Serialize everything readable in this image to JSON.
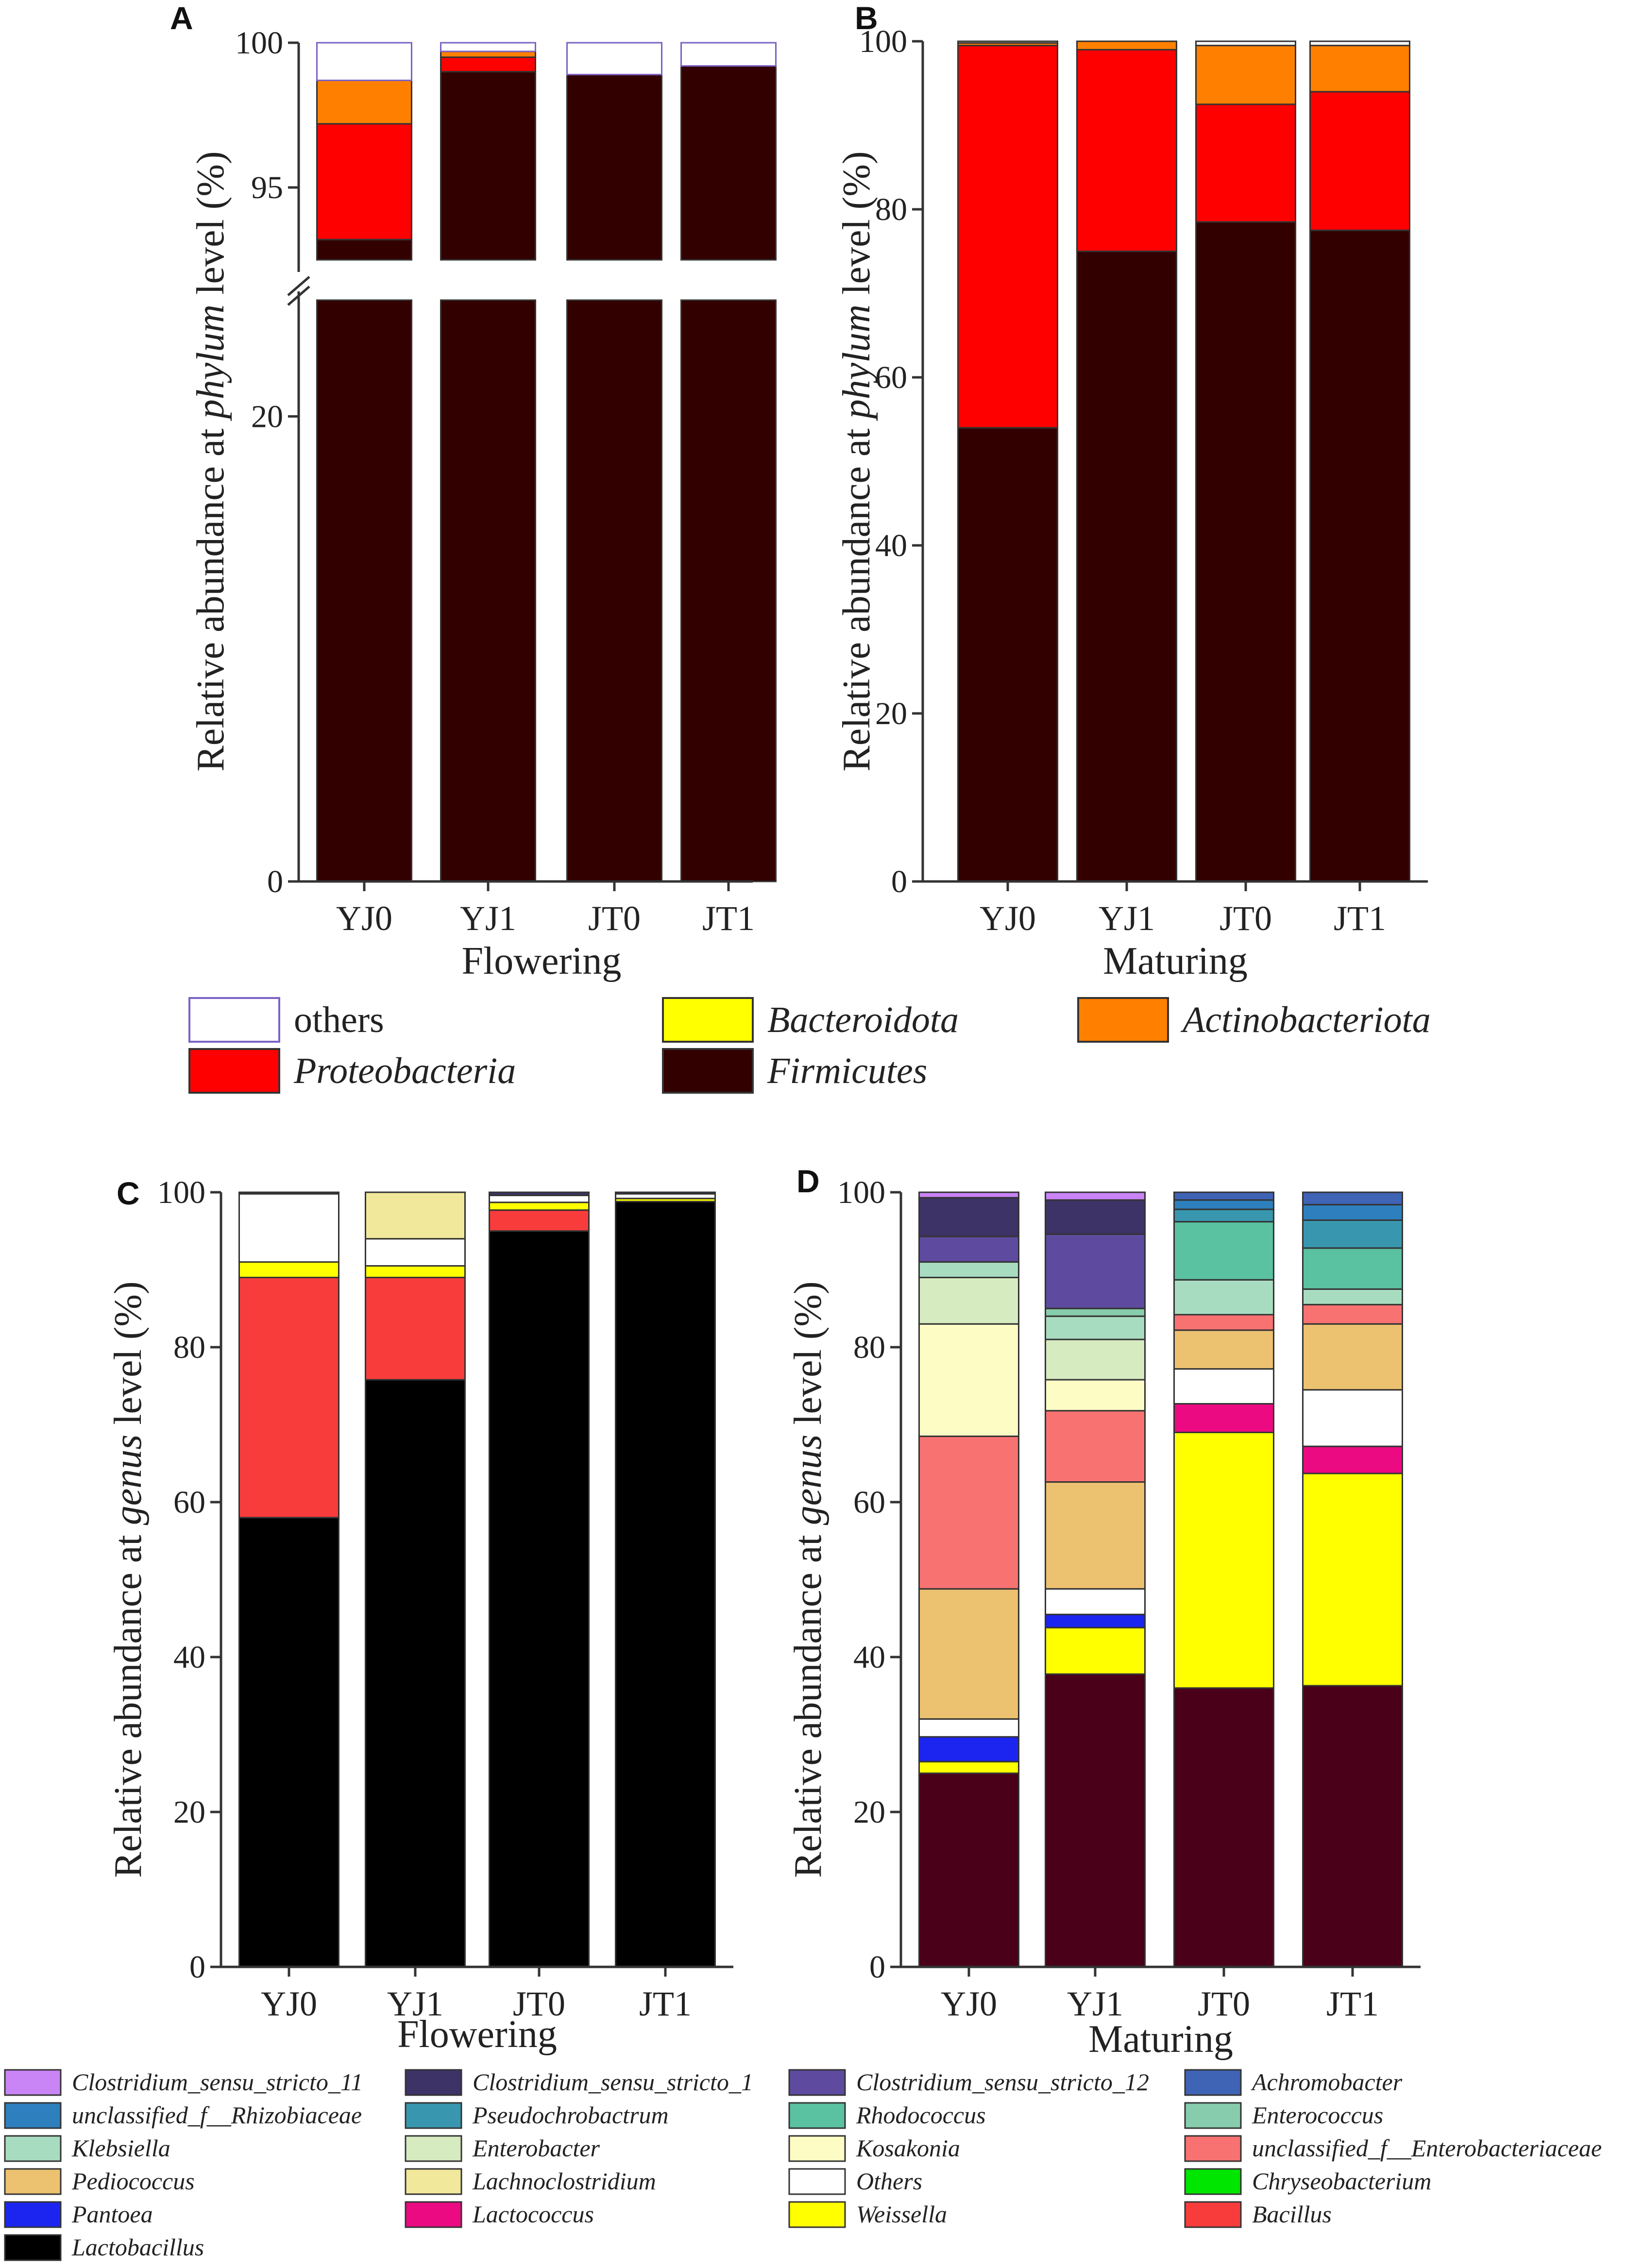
{
  "colors": {
    "others": "#ffffff",
    "others_edge_A": "#7b62c4",
    "bacteroidota": "#ffff00",
    "actinobacteriota": "#ff8000",
    "proteobacteria": "#ff0000",
    "firmicutes": "#330000",
    "axis": "#333333"
  },
  "chart_data": [
    {
      "panel": "A",
      "type": "bar",
      "stacked": true,
      "broken_axis": true,
      "title": "",
      "xlabel": "Flowering",
      "ylabel": {
        "prefix": "Relative abundance at ",
        "italic": "phylum",
        "suffix": " level (%)"
      },
      "categories": [
        "YJ0",
        "YJ1",
        "JT0",
        "JT1"
      ],
      "ylim_lower": [
        0,
        25
      ],
      "ylim_upper": [
        92.5,
        100
      ],
      "yticks_lower": [
        "0",
        "20"
      ],
      "yticks_upper": [
        "95",
        "100"
      ],
      "series": [
        {
          "name": "Firmicutes",
          "color": "#330000",
          "values": [
            93.2,
            99.0,
            98.9,
            99.2
          ]
        },
        {
          "name": "Proteobacteria",
          "color": "#ff0000",
          "values": [
            4.0,
            0.5,
            0.0,
            0.0
          ]
        },
        {
          "name": "Actinobacteriota",
          "color": "#ff8000",
          "values": [
            1.5,
            0.2,
            0.0,
            0.0
          ]
        },
        {
          "name": "Bacteroidota",
          "color": "#ffff00",
          "values": [
            0.0,
            0.0,
            0.0,
            0.0
          ]
        },
        {
          "name": "others",
          "color": "#ffffff",
          "values": [
            1.3,
            0.3,
            1.1,
            0.8
          ]
        }
      ]
    },
    {
      "panel": "B",
      "type": "bar",
      "stacked": true,
      "title": "",
      "xlabel": "Maturing",
      "ylabel": {
        "prefix": "Relative abundance at ",
        "italic": "phylum",
        "suffix": " level (%)"
      },
      "categories": [
        "YJ0",
        "YJ1",
        "JT0",
        "JT1"
      ],
      "ylim": [
        0,
        100
      ],
      "yticks": [
        "0",
        "20",
        "40",
        "60",
        "80",
        "100"
      ],
      "series": [
        {
          "name": "Firmicutes",
          "color": "#330000",
          "values": [
            54.0,
            75.0,
            78.5,
            77.5
          ]
        },
        {
          "name": "Proteobacteria",
          "color": "#ff0000",
          "values": [
            45.5,
            24.0,
            14.0,
            16.5
          ]
        },
        {
          "name": "Actinobacteriota",
          "color": "#ff8000",
          "values": [
            0.3,
            1.0,
            7.0,
            5.5
          ]
        },
        {
          "name": "Bacteroidota",
          "color": "#ffff00",
          "values": [
            0.0,
            0.0,
            0.0,
            0.0
          ]
        },
        {
          "name": "others",
          "color": "#ffffff",
          "values": [
            0.2,
            0.0,
            0.5,
            0.5
          ]
        }
      ]
    },
    {
      "panel": "C",
      "type": "bar",
      "stacked": true,
      "title": "",
      "xlabel": "Flowering",
      "ylabel": {
        "prefix": "Relative abundance at ",
        "italic": "genus",
        "suffix": " level (%)"
      },
      "categories": [
        "YJ0",
        "YJ1",
        "JT0",
        "JT1"
      ],
      "ylim": [
        0,
        100
      ],
      "yticks": [
        "0",
        "20",
        "40",
        "60",
        "80",
        "100"
      ],
      "series": [
        {
          "name": "Lactobacillus",
          "color": "#000000",
          "values": [
            58.0,
            75.8,
            95.0,
            98.8
          ]
        },
        {
          "name": "Bacillus",
          "color": "#f83c3c",
          "values": [
            31.0,
            13.2,
            2.7,
            0.0
          ]
        },
        {
          "name": "Weissella",
          "color": "#ffff00",
          "values": [
            2.0,
            1.5,
            1.0,
            0.4
          ]
        },
        {
          "name": "Others",
          "color": "#ffffff",
          "values": [
            8.8,
            3.5,
            0.9,
            0.6
          ]
        },
        {
          "name": "Lachnoclostridium",
          "color": "#f2e89b",
          "values": [
            0.0,
            6.0,
            0.0,
            0.0
          ]
        },
        {
          "name": "Clostridium_sensu_stricto_1",
          "color": "#3e3367",
          "values": [
            0.2,
            0.0,
            0.4,
            0.2
          ]
        }
      ]
    },
    {
      "panel": "D",
      "type": "bar",
      "stacked": true,
      "title": "",
      "xlabel": "Maturing",
      "ylabel": {
        "prefix": "Relative abundance at ",
        "italic": "genus",
        "suffix": " level (%)"
      },
      "categories": [
        "YJ0",
        "YJ1",
        "JT0",
        "JT1"
      ],
      "ylim": [
        0,
        100
      ],
      "yticks": [
        "0",
        "20",
        "40",
        "60",
        "80",
        "100"
      ],
      "series": [
        {
          "name": "Lactobacillus",
          "color": "#4a0019",
          "values": [
            25.0,
            37.8,
            36.0,
            36.3
          ]
        },
        {
          "name": "Weissella",
          "color": "#ffff00",
          "values": [
            1.5,
            6.0,
            33.0,
            27.4
          ]
        },
        {
          "name": "Pantoea",
          "color": "#1c25f0",
          "values": [
            3.2,
            1.7,
            0.0,
            0.0
          ]
        },
        {
          "name": "Lactococcus",
          "color": "#eb0a82",
          "values": [
            0.0,
            0.0,
            3.7,
            3.5
          ]
        },
        {
          "name": "Others",
          "color": "#ffffff",
          "values": [
            2.3,
            3.3,
            4.5,
            7.3
          ]
        },
        {
          "name": "Pediococcus",
          "color": "#ecc170",
          "values": [
            16.8,
            13.8,
            5.0,
            8.5
          ]
        },
        {
          "name": "unclassified_f__Enterobacteriaceae",
          "color": "#f87272",
          "values": [
            19.7,
            9.2,
            2.0,
            2.5
          ]
        },
        {
          "name": "Kosakonia",
          "color": "#fdfcc5",
          "values": [
            14.5,
            4.0,
            0.0,
            0.0
          ]
        },
        {
          "name": "Enterobacter",
          "color": "#d6ebc0",
          "values": [
            6.0,
            5.2,
            0.0,
            0.0
          ]
        },
        {
          "name": "Klebsiella",
          "color": "#a8dcc0",
          "values": [
            2.0,
            3.0,
            4.5,
            2.0
          ]
        },
        {
          "name": "Enterococcus",
          "color": "#87ccac",
          "values": [
            0.0,
            1.0,
            0.0,
            0.0
          ]
        },
        {
          "name": "Rhodococcus",
          "color": "#5ac1a1",
          "values": [
            0.0,
            0.0,
            7.5,
            5.3
          ]
        },
        {
          "name": "Pseudochrobactrum",
          "color": "#3897ae",
          "values": [
            0.0,
            0.0,
            1.6,
            3.6
          ]
        },
        {
          "name": "unclassified_f__Rhizobiaceae",
          "color": "#2e7fbd",
          "values": [
            0.0,
            0.0,
            1.2,
            2.0
          ]
        },
        {
          "name": "Achromobacter",
          "color": "#3f63b5",
          "values": [
            0.0,
            0.0,
            1.0,
            1.6
          ]
        },
        {
          "name": "Clostridium_sensu_stricto_12",
          "color": "#5e4b9f",
          "values": [
            3.3,
            9.6,
            0.0,
            0.0
          ]
        },
        {
          "name": "Clostridium_sensu_stricto_1",
          "color": "#3e3367",
          "values": [
            5.0,
            4.4,
            0.0,
            0.0
          ]
        },
        {
          "name": "Clostridium_sensu_stricto_11",
          "color": "#c984f5",
          "values": [
            0.7,
            1.0,
            0.0,
            0.0
          ]
        }
      ]
    }
  ],
  "legend_phylum": [
    {
      "label": "others",
      "color": "#ffffff",
      "italic": false
    },
    {
      "label": "Bacteroidota",
      "color": "#ffff00",
      "italic": true
    },
    {
      "label": "Actinobacteriota",
      "color": "#ff8000",
      "italic": true
    },
    {
      "label": "Proteobacteria",
      "color": "#ff0000",
      "italic": true
    },
    {
      "label": "Firmicutes",
      "color": "#330000",
      "italic": true
    }
  ],
  "legend_genus": [
    {
      "label": "Clostridium_sensu_stricto_11",
      "color": "#c984f5"
    },
    {
      "label": "Clostridium_sensu_stricto_1",
      "color": "#3e3367"
    },
    {
      "label": "Clostridium_sensu_stricto_12",
      "color": "#5e4b9f"
    },
    {
      "label": "Achromobacter",
      "color": "#3f63b5"
    },
    {
      "label": "unclassified_f__Rhizobiaceae",
      "color": "#2e7fbd"
    },
    {
      "label": "Pseudochrobactrum",
      "color": "#3897ae"
    },
    {
      "label": "Rhodococcus",
      "color": "#5ac1a1"
    },
    {
      "label": "Enterococcus",
      "color": "#87ccac"
    },
    {
      "label": "Klebsiella",
      "color": "#a8dcc0"
    },
    {
      "label": "Enterobacter",
      "color": "#d6ebc0"
    },
    {
      "label": "Kosakonia",
      "color": "#fdfcc5"
    },
    {
      "label": "unclassified_f__Enterobacteriaceae",
      "color": "#f87272"
    },
    {
      "label": "Pediococcus",
      "color": "#ecc170"
    },
    {
      "label": "Lachnoclostridium",
      "color": "#f2e89b"
    },
    {
      "label": "Others",
      "color": "#ffffff"
    },
    {
      "label": "Chryseobacterium",
      "color": "#00e600"
    },
    {
      "label": "Pantoea",
      "color": "#1c25f0"
    },
    {
      "label": "Lactococcus",
      "color": "#eb0a82"
    },
    {
      "label": "Weissella",
      "color": "#ffff00"
    },
    {
      "label": "Bacillus",
      "color": "#f83c3c"
    },
    {
      "label": "Lactobacillus",
      "color": "#000000"
    }
  ]
}
